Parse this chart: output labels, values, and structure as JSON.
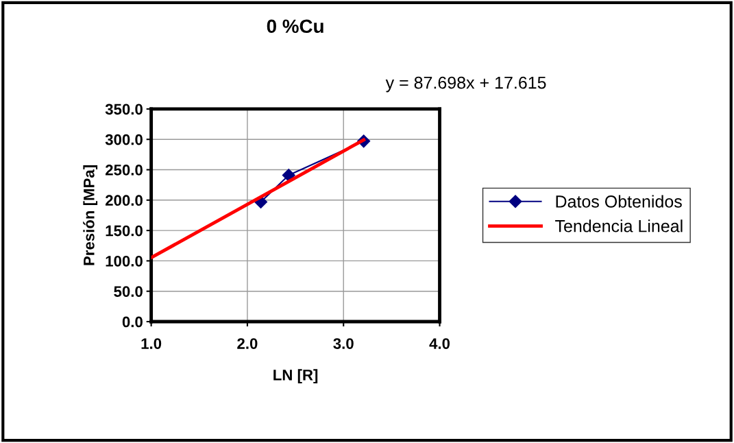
{
  "chart_data": {
    "type": "line",
    "title": "0 %Cu",
    "xlabel": "LN [R]",
    "ylabel": "Presión [MPa]",
    "annotations": [
      "y = 87.698x + 17.615"
    ],
    "series": [
      {
        "name": "Datos Obtenidos",
        "color": "#000080",
        "x": [
          2.14,
          2.43,
          3.21
        ],
        "values": [
          197,
          241,
          297
        ],
        "marker": "diamond",
        "line_style": "solid"
      },
      {
        "name": "Tendencia Lineal",
        "color": "#ff0000",
        "x": [
          1.0,
          3.21
        ],
        "values": [
          105.3,
          299.1
        ],
        "marker": "none",
        "line_style": "solid"
      }
    ],
    "xlim": [
      1.0,
      4.0
    ],
    "xticks": [
      {
        "value": 1.0,
        "label": "1.0"
      },
      {
        "value": 2.0,
        "label": "2.0"
      },
      {
        "value": 3.0,
        "label": "3.0"
      },
      {
        "value": 4.0,
        "label": "4.0"
      }
    ],
    "ylim": [
      0,
      350
    ],
    "yticks": [
      {
        "value": 0,
        "label": "0.0"
      },
      {
        "value": 50,
        "label": "50.0"
      },
      {
        "value": 100,
        "label": "100.0"
      },
      {
        "value": 150,
        "label": "150.0"
      },
      {
        "value": 200,
        "label": "200.0"
      },
      {
        "value": 250,
        "label": "250.0"
      },
      {
        "value": 300,
        "label": "300.0"
      },
      {
        "value": 350,
        "label": "350.0"
      }
    ],
    "grid": true,
    "legend": "right"
  }
}
